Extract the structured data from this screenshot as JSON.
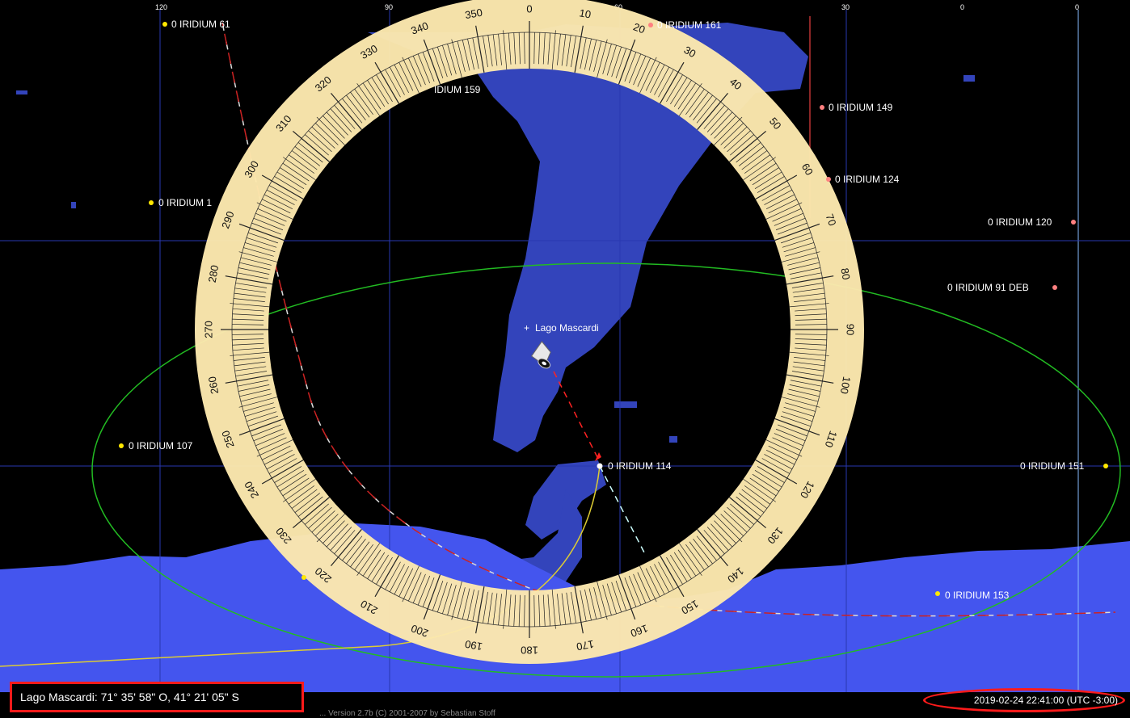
{
  "place": {
    "name": "Lago Mascardi"
  },
  "status": {
    "location_readout": "Lago Mascardi: 71° 35' 58\" O, 41° 21' 05\" S",
    "datetime": "2019-02-24 22:41:00 (UTC -3:00)",
    "credit": "... Version 2.7b (C) 2001-2007 by Sebastian Stoff"
  },
  "grid_labels": [
    "120",
    "90",
    "60",
    "30",
    "0",
    "0"
  ],
  "satellites": [
    {
      "name": "0 IRIDIUM 61",
      "color": "yellow"
    },
    {
      "name": "0 IRIDIUM 161",
      "color": "red"
    },
    {
      "name": "IDIUM 159",
      "color": "yellow"
    },
    {
      "name": "0 IRIDIUM 149",
      "color": "red"
    },
    {
      "name": "0 IRIDIUM 124",
      "color": "red"
    },
    {
      "name": "0 IRIDIUM 1",
      "color": "yellow"
    },
    {
      "name": "0 IRIDIUM 120",
      "color": "red"
    },
    {
      "name": "0 IRIDIUM 91 DEB",
      "color": "red"
    },
    {
      "name": "0 IRIDIUM 107",
      "color": "yellow"
    },
    {
      "name": "0 IRIDIUM 114",
      "color": "white"
    },
    {
      "name": "0 IRIDIUM 151",
      "color": "yellow"
    },
    {
      "name": "0 IRIDIUM 153",
      "color": "yellow"
    }
  ],
  "compass_degrees": [
    "0",
    "10",
    "20",
    "30",
    "40",
    "50",
    "60",
    "70",
    "80",
    "90",
    "100",
    "110",
    "120",
    "130",
    "140",
    "150",
    "160",
    "170",
    "180",
    "190",
    "200",
    "210",
    "220",
    "230",
    "240",
    "250",
    "260",
    "270",
    "280",
    "290",
    "300",
    "310",
    "320",
    "330",
    "340",
    "350"
  ],
  "colors": {
    "sky": "#000000",
    "land": "#3344bb",
    "ice": "#4455ee",
    "grid": "#2838b0",
    "compass_ring": "#fce8ae",
    "horizon_circle": "#22bb22",
    "status_highlight": "#ff1a1a"
  }
}
